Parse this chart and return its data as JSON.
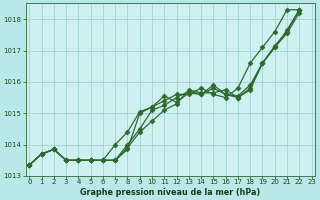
{
  "xlabel": "Graphe pression niveau de la mer (hPa)",
  "bg_color": "#b8e8e8",
  "plot_bg_color": "#cff0f0",
  "grid_color": "#99cccc",
  "line_color": "#2d6a2d",
  "marker": "D",
  "markersize": 2.5,
  "linewidth": 0.9,
  "xlim": [
    -0.3,
    23.3
  ],
  "ylim": [
    1013.0,
    1018.5
  ],
  "yticks": [
    1013,
    1014,
    1015,
    1016,
    1017,
    1018
  ],
  "xticks": [
    0,
    1,
    2,
    3,
    4,
    5,
    6,
    7,
    8,
    9,
    10,
    11,
    12,
    13,
    14,
    15,
    16,
    17,
    18,
    19,
    20,
    21,
    22,
    23
  ],
  "series_x": [
    [
      0,
      1,
      2,
      3,
      4,
      5,
      6,
      7,
      8,
      9,
      10,
      11,
      12,
      13,
      14,
      15,
      16,
      17,
      18,
      19,
      20,
      21,
      22
    ],
    [
      0,
      1,
      2,
      3,
      4,
      5,
      6,
      7,
      8,
      9,
      10,
      11,
      12,
      13,
      14,
      15,
      16,
      17,
      18,
      19,
      20,
      21,
      22
    ],
    [
      0,
      1,
      2,
      3,
      4,
      5,
      6,
      7,
      8,
      9,
      10,
      11,
      12,
      13,
      14,
      15,
      16,
      17,
      18,
      19,
      20,
      21,
      22
    ],
    [
      0,
      1,
      2,
      3,
      4,
      5,
      6,
      7,
      8,
      9,
      10,
      11,
      12,
      13,
      14,
      15,
      16,
      17,
      18,
      19,
      20,
      21,
      22
    ]
  ],
  "series_y": [
    [
      1013.35,
      1013.7,
      1013.85,
      1013.5,
      1013.5,
      1013.5,
      1013.5,
      1013.5,
      1013.9,
      1014.4,
      1014.75,
      1015.1,
      1015.3,
      1015.75,
      1015.65,
      1015.65,
      1015.75,
      1015.5,
      1015.75,
      1016.6,
      1017.1,
      1017.55,
      1018.2
    ],
    [
      1013.35,
      1013.7,
      1013.85,
      1013.5,
      1013.5,
      1013.5,
      1013.5,
      1013.5,
      1014.0,
      1014.5,
      1015.1,
      1015.25,
      1015.5,
      1015.7,
      1015.6,
      1015.8,
      1015.6,
      1015.5,
      1015.8,
      1016.6,
      1017.1,
      1017.65,
      1018.3
    ],
    [
      1013.35,
      1013.7,
      1013.85,
      1013.5,
      1013.5,
      1013.5,
      1013.5,
      1014.0,
      1014.4,
      1015.05,
      1015.2,
      1015.55,
      1015.35,
      1015.65,
      1015.6,
      1015.9,
      1015.6,
      1015.55,
      1015.9,
      1016.6,
      1017.15,
      1017.6,
      1018.3
    ],
    [
      1013.35,
      1013.7,
      1013.85,
      1013.5,
      1013.5,
      1013.5,
      1013.5,
      1013.5,
      1013.85,
      1015.0,
      1015.2,
      1015.4,
      1015.6,
      1015.6,
      1015.8,
      1015.6,
      1015.5,
      1015.8,
      1016.6,
      1017.1,
      1017.6,
      1018.3,
      1018.3
    ]
  ]
}
